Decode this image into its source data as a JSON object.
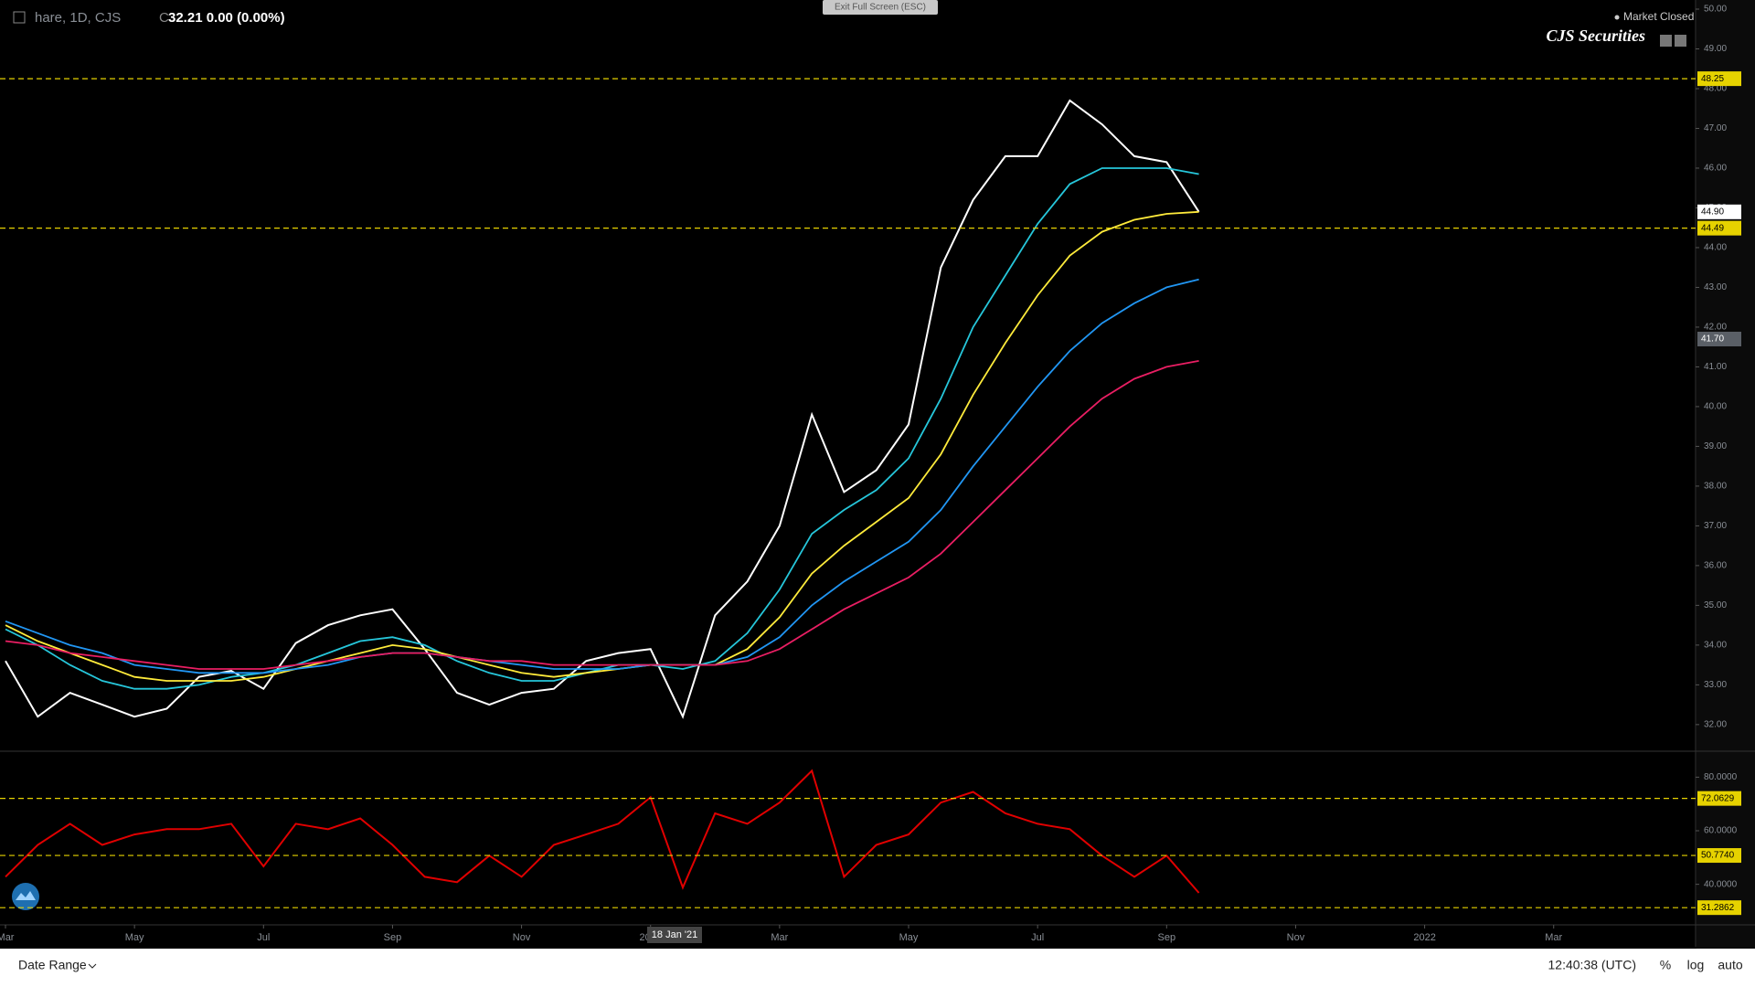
{
  "header": {
    "symbol": "hare, 1D, CJS",
    "close_prefix": "C",
    "quote": "32.21  0.00 (0.00%)",
    "exit": "Exit Full Screen (ESC)",
    "status": "Market Closed",
    "brand": "CJS Securities",
    "crosshair_date": "18 Jan '21"
  },
  "footer": {
    "date_range": "Date Range",
    "clock": "12:40:38 (UTC)",
    "percent": "%",
    "log": "log",
    "auto": "auto"
  },
  "chart_data": [
    {
      "type": "line",
      "xlim": [
        0,
        52.4
      ],
      "xticks": [
        {
          "value": 0,
          "label": "Mar"
        },
        {
          "value": 4,
          "label": "May"
        },
        {
          "value": 8,
          "label": "Jul"
        },
        {
          "value": 12,
          "label": "Sep"
        },
        {
          "value": 16,
          "label": "Nov"
        },
        {
          "value": 20,
          "label": "2021"
        },
        {
          "value": 24,
          "label": "Mar"
        },
        {
          "value": 28,
          "label": "May"
        },
        {
          "value": 32,
          "label": "Jul"
        },
        {
          "value": 36,
          "label": "Sep"
        },
        {
          "value": 40,
          "label": "Nov"
        },
        {
          "value": 44,
          "label": "2022"
        },
        {
          "value": 48,
          "label": "Mar"
        }
      ],
      "ylim": [
        31.33,
        50.23
      ],
      "yticks": [
        {
          "value": 32,
          "label": "32.00"
        },
        {
          "value": 33,
          "label": "33.00"
        },
        {
          "value": 34,
          "label": "34.00"
        },
        {
          "value": 35,
          "label": "35.00"
        },
        {
          "value": 36,
          "label": "36.00"
        },
        {
          "value": 37,
          "label": "37.00"
        },
        {
          "value": 38,
          "label": "38.00"
        },
        {
          "value": 39,
          "label": "39.00"
        },
        {
          "value": 40,
          "label": "40.00"
        },
        {
          "value": 41,
          "label": "41.00"
        },
        {
          "value": 42,
          "label": "42.00"
        },
        {
          "value": 43,
          "label": "43.00"
        },
        {
          "value": 44,
          "label": "44.00"
        },
        {
          "value": 45,
          "label": "45.00"
        },
        {
          "value": 46,
          "label": "46.00"
        },
        {
          "value": 47,
          "label": "47.00"
        },
        {
          "value": 48,
          "label": "48.00"
        },
        {
          "value": 49,
          "label": "49.00"
        },
        {
          "value": 50,
          "label": "50.00"
        }
      ],
      "levels": [
        48.25,
        44.49
      ],
      "level_color": "#e6d200",
      "markers": [
        {
          "value": 44.9,
          "label": "44.90",
          "color": "#ffffff"
        },
        {
          "value": 41.7,
          "label": "41.70",
          "color": "#5a5f66"
        }
      ],
      "series": [
        {
          "color": "#ffffff",
          "values": [
            33.6,
            32.2,
            32.8,
            32.5,
            32.2,
            32.4,
            33.2,
            33.35,
            32.9,
            34.05,
            34.5,
            34.75,
            34.9,
            33.9,
            32.8,
            32.5,
            32.8,
            32.9,
            33.6,
            33.8,
            33.9,
            32.2,
            34.75,
            35.6,
            37.0,
            39.8,
            37.85,
            38.4,
            39.55,
            43.5,
            45.2,
            46.3,
            46.3,
            47.7,
            47.1,
            46.3,
            46.15,
            44.9
          ]
        },
        {
          "color": "#26c6da",
          "values": [
            34.4,
            34.0,
            33.5,
            33.1,
            32.9,
            32.9,
            33.0,
            33.2,
            33.3,
            33.5,
            33.8,
            34.1,
            34.2,
            34.0,
            33.6,
            33.3,
            33.1,
            33.1,
            33.3,
            33.5,
            33.5,
            33.4,
            33.6,
            34.3,
            35.4,
            36.8,
            37.4,
            37.9,
            38.7,
            40.2,
            42.0,
            43.3,
            44.6,
            45.6,
            46.0,
            46.0,
            46.0,
            45.85
          ]
        },
        {
          "color": "#ffeb3b",
          "values": [
            34.5,
            34.1,
            33.8,
            33.5,
            33.2,
            33.1,
            33.1,
            33.1,
            33.2,
            33.4,
            33.6,
            33.8,
            34.0,
            33.9,
            33.7,
            33.5,
            33.3,
            33.2,
            33.3,
            33.4,
            33.5,
            33.5,
            33.5,
            33.9,
            34.7,
            35.8,
            36.5,
            37.1,
            37.7,
            38.8,
            40.3,
            41.6,
            42.8,
            43.8,
            44.4,
            44.7,
            44.85,
            44.9
          ]
        },
        {
          "color": "#2196f3",
          "values": [
            34.6,
            34.3,
            34.0,
            33.8,
            33.5,
            33.4,
            33.3,
            33.3,
            33.3,
            33.4,
            33.5,
            33.7,
            33.8,
            33.8,
            33.7,
            33.6,
            33.5,
            33.4,
            33.4,
            33.4,
            33.5,
            33.5,
            33.5,
            33.7,
            34.2,
            35.0,
            35.6,
            36.1,
            36.6,
            37.4,
            38.5,
            39.5,
            40.5,
            41.4,
            42.1,
            42.6,
            43.0,
            43.2
          ]
        },
        {
          "color": "#e91e63",
          "values": [
            34.1,
            34.0,
            33.8,
            33.7,
            33.6,
            33.5,
            33.4,
            33.4,
            33.4,
            33.5,
            33.6,
            33.7,
            33.8,
            33.8,
            33.7,
            33.6,
            33.6,
            33.5,
            33.5,
            33.5,
            33.5,
            33.5,
            33.5,
            33.6,
            33.9,
            34.4,
            34.9,
            35.3,
            35.7,
            36.3,
            37.1,
            37.9,
            38.7,
            39.5,
            40.2,
            40.7,
            41.0,
            41.15
          ]
        }
      ]
    },
    {
      "type": "line",
      "xlim": [
        0,
        52.4
      ],
      "ylim": [
        25.2,
        89.35
      ],
      "yticks": [
        {
          "value": 40,
          "label": "40.0000"
        },
        {
          "value": 60,
          "label": "60.0000"
        },
        {
          "value": 80,
          "label": "80.0000"
        }
      ],
      "levels": [
        72.0629,
        {
          "value": 50.774,
          "label": "50.7740"
        },
        31.2862
      ],
      "level_color": "#e6d200",
      "series": [
        {
          "color": "#e00000",
          "values": [
            42.8,
            54.7,
            62.6,
            54.7,
            58.6,
            60.6,
            60.6,
            62.6,
            46.7,
            62.6,
            60.6,
            64.6,
            54.7,
            42.8,
            40.8,
            50.7,
            42.8,
            54.7,
            58.6,
            62.6,
            72.5,
            38.8,
            66.5,
            62.6,
            70.5,
            82.4,
            42.8,
            54.7,
            58.6,
            70.5,
            74.5,
            66.5,
            62.6,
            60.6,
            50.7,
            42.8,
            50.7,
            36.8
          ]
        }
      ]
    }
  ]
}
